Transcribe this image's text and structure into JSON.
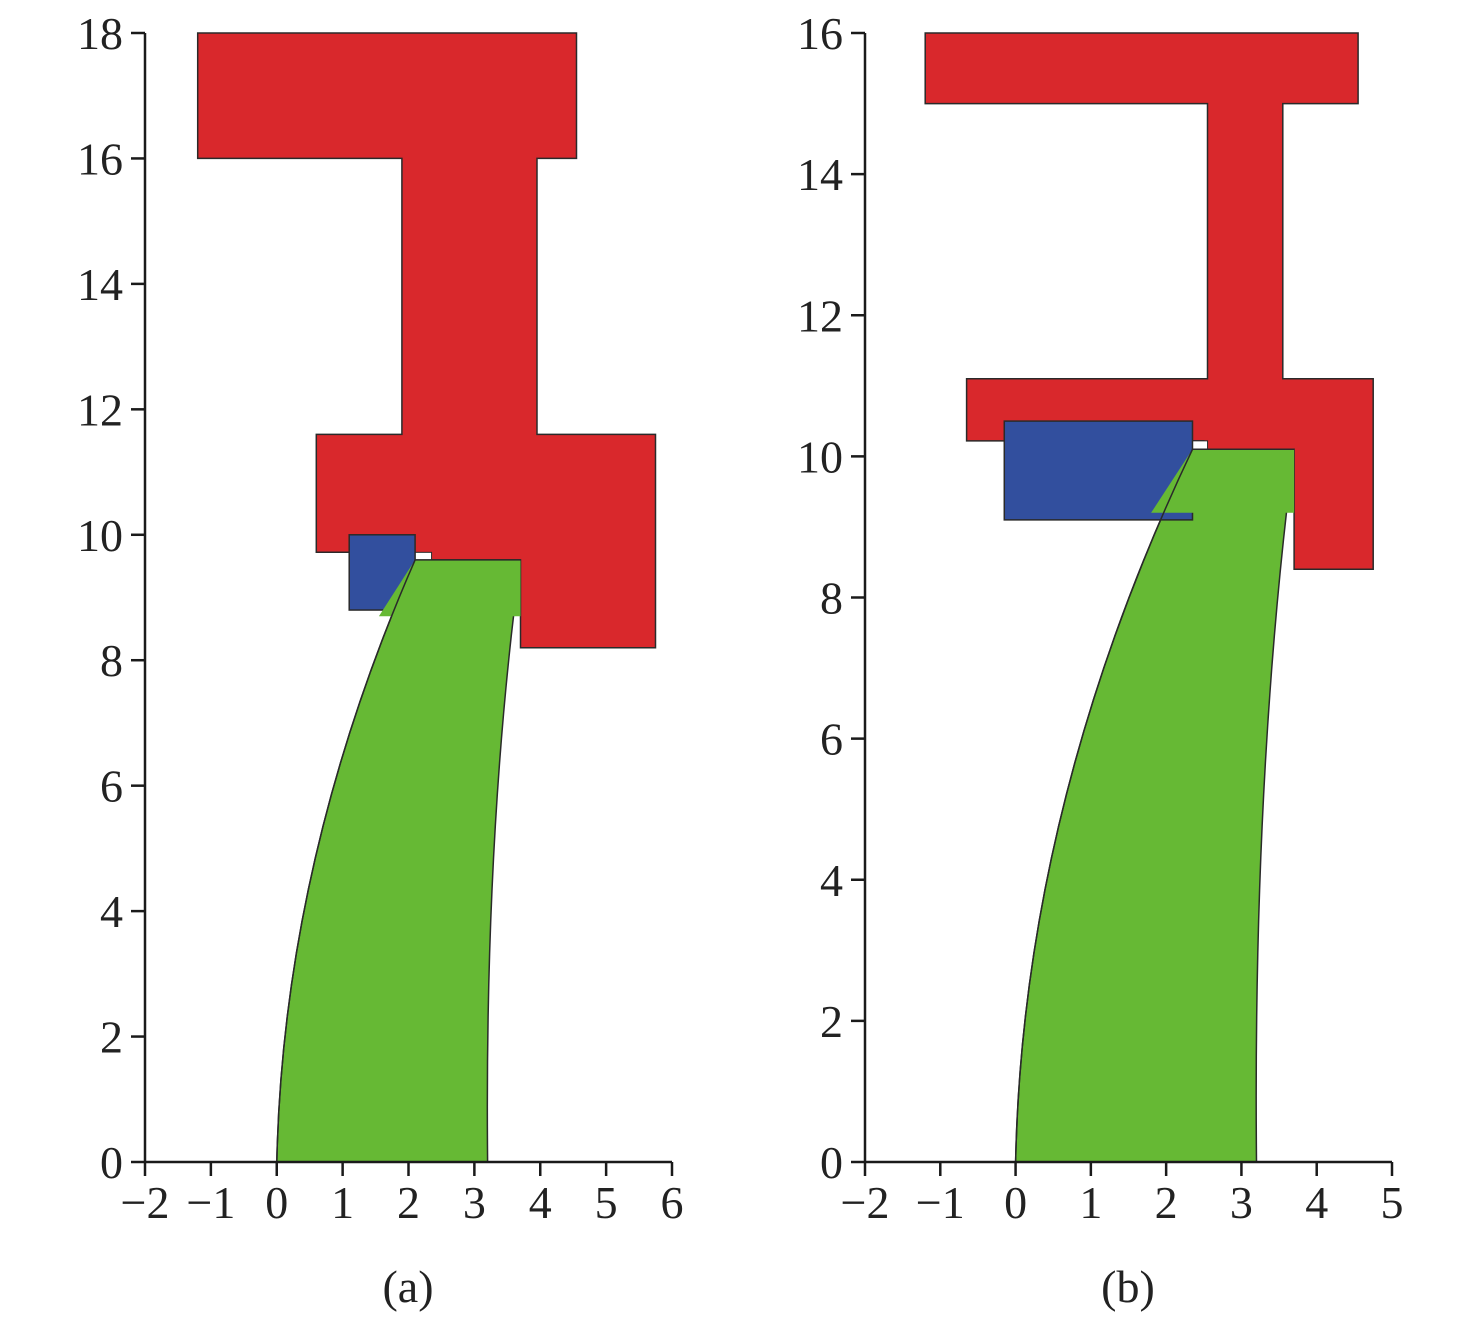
{
  "figure": {
    "colors": {
      "head": "#d9282c",
      "block": "#324f9e",
      "stem": "#66b934",
      "gap": "#ffffff"
    }
  },
  "chart_data": [
    {
      "type": "diagram",
      "panel_label": "(a)",
      "xlim": [
        -2,
        6
      ],
      "ylim": [
        0,
        18
      ],
      "xticks": [
        -2,
        -1,
        0,
        1,
        2,
        3,
        4,
        5,
        6
      ],
      "xtick_labels": [
        "−2",
        "−1",
        "0",
        "1",
        "2",
        "3",
        "4",
        "5",
        "6"
      ],
      "yticks": [
        0,
        2,
        4,
        6,
        8,
        10,
        12,
        14,
        16,
        18
      ],
      "ytick_labels": [
        "0",
        "2",
        "4",
        "6",
        "8",
        "10",
        "12",
        "14",
        "16",
        "18"
      ],
      "head_outline": [
        [
          -1.2,
          18.0
        ],
        [
          4.55,
          18.0
        ],
        [
          4.55,
          16.0
        ],
        [
          3.95,
          16.0
        ],
        [
          3.95,
          11.6
        ],
        [
          5.75,
          11.6
        ],
        [
          5.75,
          8.2
        ],
        [
          3.7,
          8.2
        ],
        [
          3.7,
          9.6
        ],
        [
          2.1,
          9.6
        ],
        [
          2.1,
          9.72
        ],
        [
          0.6,
          9.72
        ],
        [
          0.6,
          11.6
        ],
        [
          1.9,
          11.6
        ],
        [
          1.9,
          16.0
        ],
        [
          -1.2,
          16.0
        ]
      ],
      "gap_rect": [
        [
          2.1,
          9.6
        ],
        [
          2.35,
          9.72
        ]
      ],
      "block_rect": [
        [
          1.1,
          8.8
        ],
        [
          2.1,
          10.0
        ]
      ],
      "stem": {
        "base_left": 0.0,
        "base_right": 3.2,
        "top_left": 2.1,
        "top_right": 3.7,
        "top_y": 9.6
      }
    },
    {
      "type": "diagram",
      "panel_label": "(b)",
      "xlim": [
        -2,
        5
      ],
      "ylim": [
        0,
        16
      ],
      "xticks": [
        -2,
        -1,
        0,
        1,
        2,
        3,
        4,
        5
      ],
      "xtick_labels": [
        "−2",
        "−1",
        "0",
        "1",
        "2",
        "3",
        "4",
        "5"
      ],
      "yticks": [
        0,
        2,
        4,
        6,
        8,
        10,
        12,
        14,
        16
      ],
      "ytick_labels": [
        "0",
        "2",
        "4",
        "6",
        "8",
        "10",
        "12",
        "14",
        "16"
      ],
      "head_outline": [
        [
          -1.2,
          16.0
        ],
        [
          4.55,
          16.0
        ],
        [
          4.55,
          15.0
        ],
        [
          3.55,
          15.0
        ],
        [
          3.55,
          11.1
        ],
        [
          4.75,
          11.1
        ],
        [
          4.75,
          8.4
        ],
        [
          3.7,
          8.4
        ],
        [
          3.7,
          10.1
        ],
        [
          2.5,
          10.1
        ],
        [
          2.5,
          10.22
        ],
        [
          -0.65,
          10.22
        ],
        [
          -0.65,
          11.1
        ],
        [
          2.55,
          11.1
        ],
        [
          2.55,
          15.0
        ],
        [
          -1.2,
          15.0
        ]
      ],
      "gap_rect": [
        [
          2.35,
          10.1
        ],
        [
          2.55,
          10.22
        ]
      ],
      "block_rect": [
        [
          -0.15,
          9.1
        ],
        [
          2.35,
          10.5
        ]
      ],
      "stem": {
        "base_left": 0.0,
        "base_right": 3.2,
        "top_left": 2.35,
        "top_right": 3.7,
        "top_y": 10.1
      }
    }
  ]
}
